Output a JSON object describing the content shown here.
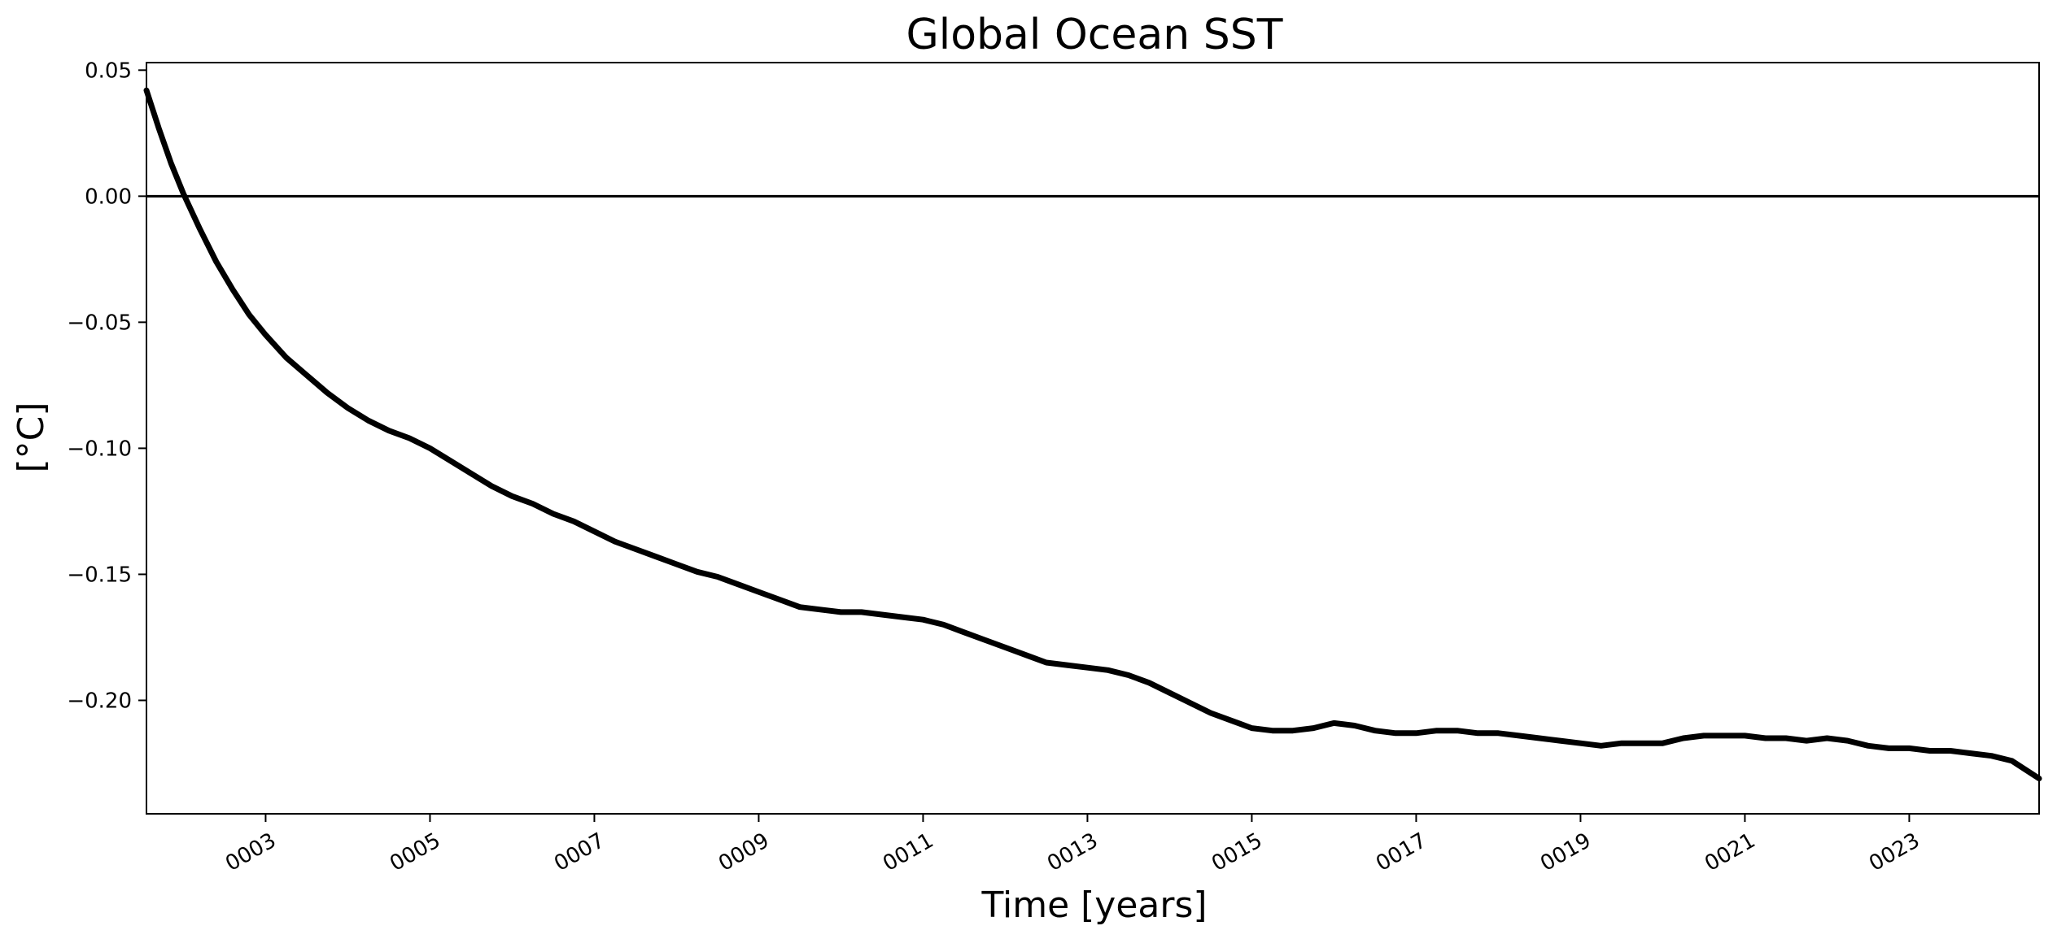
{
  "chart_data": {
    "type": "line",
    "title": "Global Ocean SST",
    "xlabel": "Time [years]",
    "ylabel": "[°C]",
    "xlim": [
      1.55,
      24.58
    ],
    "ylim": [
      -0.245,
      0.053
    ],
    "x_ticks": [
      {
        "value": 3,
        "label": "0003"
      },
      {
        "value": 5,
        "label": "0005"
      },
      {
        "value": 7,
        "label": "0007"
      },
      {
        "value": 9,
        "label": "0009"
      },
      {
        "value": 11,
        "label": "0011"
      },
      {
        "value": 13,
        "label": "0013"
      },
      {
        "value": 15,
        "label": "0015"
      },
      {
        "value": 17,
        "label": "0017"
      },
      {
        "value": 19,
        "label": "0019"
      },
      {
        "value": 21,
        "label": "0021"
      },
      {
        "value": 23,
        "label": "0023"
      }
    ],
    "y_ticks": [
      {
        "value": 0.05,
        "label": "0.05"
      },
      {
        "value": 0.0,
        "label": "0.00"
      },
      {
        "value": -0.05,
        "label": "−0.05"
      },
      {
        "value": -0.1,
        "label": "−0.10"
      },
      {
        "value": -0.15,
        "label": "−0.15"
      },
      {
        "value": -0.2,
        "label": "−0.20"
      }
    ],
    "reference_line": {
      "y": 0.0
    },
    "grid": false,
    "colors": {
      "line": "#000000",
      "axes": "#000000",
      "background": "#ffffff"
    },
    "series": [
      {
        "x": [
          1.55,
          1.7,
          1.85,
          2.0,
          2.2,
          2.4,
          2.6,
          2.8,
          3.0,
          3.25,
          3.5,
          3.75,
          4.0,
          4.25,
          4.5,
          4.75,
          5.0,
          5.25,
          5.5,
          5.75,
          6.0,
          6.25,
          6.5,
          6.75,
          7.0,
          7.25,
          7.5,
          7.75,
          8.0,
          8.25,
          8.5,
          8.75,
          9.0,
          9.25,
          9.5,
          9.75,
          10.0,
          10.25,
          10.5,
          10.75,
          11.0,
          11.25,
          11.5,
          11.75,
          12.0,
          12.25,
          12.5,
          12.75,
          13.0,
          13.25,
          13.5,
          13.75,
          14.0,
          14.25,
          14.5,
          14.75,
          15.0,
          15.25,
          15.5,
          15.75,
          16.0,
          16.25,
          16.5,
          16.75,
          17.0,
          17.25,
          17.5,
          17.75,
          18.0,
          18.25,
          18.5,
          18.75,
          19.0,
          19.25,
          19.5,
          19.75,
          20.0,
          20.25,
          20.5,
          20.75,
          21.0,
          21.25,
          21.5,
          21.75,
          22.0,
          22.25,
          22.5,
          22.75,
          23.0,
          23.25,
          23.5,
          23.75,
          24.0,
          24.25,
          24.58
        ],
        "y": [
          0.042,
          0.027,
          0.013,
          0.001,
          -0.013,
          -0.026,
          -0.037,
          -0.047,
          -0.055,
          -0.064,
          -0.071,
          -0.078,
          -0.084,
          -0.089,
          -0.093,
          -0.096,
          -0.1,
          -0.105,
          -0.11,
          -0.115,
          -0.119,
          -0.122,
          -0.126,
          -0.129,
          -0.133,
          -0.137,
          -0.14,
          -0.143,
          -0.146,
          -0.149,
          -0.151,
          -0.154,
          -0.157,
          -0.16,
          -0.163,
          -0.164,
          -0.165,
          -0.165,
          -0.166,
          -0.167,
          -0.168,
          -0.17,
          -0.173,
          -0.176,
          -0.179,
          -0.182,
          -0.185,
          -0.186,
          -0.187,
          -0.188,
          -0.19,
          -0.193,
          -0.197,
          -0.201,
          -0.205,
          -0.208,
          -0.211,
          -0.212,
          -0.212,
          -0.211,
          -0.209,
          -0.21,
          -0.212,
          -0.213,
          -0.213,
          -0.212,
          -0.212,
          -0.213,
          -0.213,
          -0.214,
          -0.215,
          -0.216,
          -0.217,
          -0.218,
          -0.217,
          -0.217,
          -0.217,
          -0.215,
          -0.214,
          -0.214,
          -0.214,
          -0.215,
          -0.215,
          -0.216,
          -0.215,
          -0.216,
          -0.218,
          -0.219,
          -0.219,
          -0.22,
          -0.22,
          -0.221,
          -0.222,
          -0.224,
          -0.231
        ]
      }
    ]
  }
}
